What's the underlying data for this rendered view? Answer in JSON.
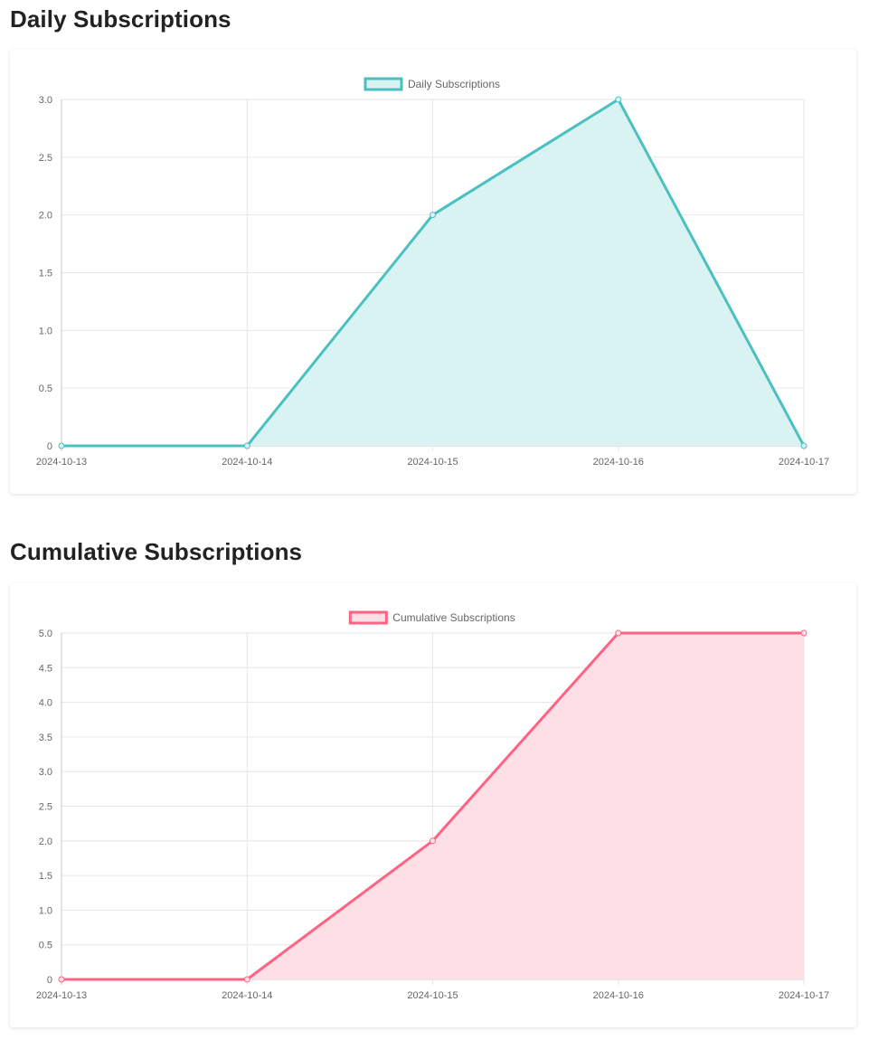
{
  "sections": [
    {
      "heading": "Daily Subscriptions",
      "chart_data": {
        "type": "area",
        "x": [
          "2024-10-13",
          "2024-10-14",
          "2024-10-15",
          "2024-10-16",
          "2024-10-17"
        ],
        "series": [
          {
            "name": "Daily Subscriptions",
            "values": [
              0,
              0,
              2,
              3,
              0
            ],
            "line_color": "#4bc0c0",
            "fill_color": "#d9f2f2"
          }
        ],
        "ylim": [
          0,
          3
        ],
        "yticks": [
          0,
          0.5,
          1,
          1.5,
          2,
          2.5,
          3
        ],
        "ytick_labels": [
          "0",
          "0.5",
          "1.0",
          "1.5",
          "2.0",
          "2.5",
          "3.0"
        ],
        "grid": true,
        "legend": "top-center"
      }
    },
    {
      "heading": "Cumulative Subscriptions",
      "chart_data": {
        "type": "area",
        "x": [
          "2024-10-13",
          "2024-10-14",
          "2024-10-15",
          "2024-10-16",
          "2024-10-17"
        ],
        "series": [
          {
            "name": "Cumulative Subscriptions",
            "values": [
              0,
              0,
              2,
              5,
              5
            ],
            "line_color": "#ff6384",
            "fill_color": "#ffdfe6"
          }
        ],
        "ylim": [
          0,
          5
        ],
        "yticks": [
          0,
          0.5,
          1,
          1.5,
          2,
          2.5,
          3,
          3.5,
          4,
          4.5,
          5
        ],
        "ytick_labels": [
          "0",
          "0.5",
          "1.0",
          "1.5",
          "2.0",
          "2.5",
          "3.0",
          "3.5",
          "4.0",
          "4.5",
          "5.0"
        ],
        "grid": true,
        "legend": "top-center"
      }
    }
  ]
}
